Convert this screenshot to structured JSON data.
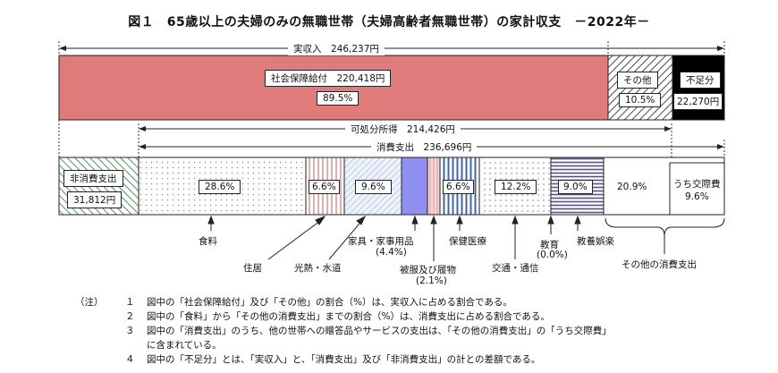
{
  "title": "図１　65歳以上の夫婦のみの無職世帯（夫婦高齢者無職世帯）の家計収支　－2022年－",
  "income": {
    "label": "実収入　246,237円",
    "social_security": {
      "label": "社会保障給付　220,418円",
      "pct": "89.5%"
    },
    "other": {
      "label": "その他",
      "pct": "10.5%"
    },
    "deficit": {
      "label": "不足分",
      "value": "22,270円"
    }
  },
  "disposable": "可処分所得　214,426円",
  "consumption_total": "消費支出　236,696円",
  "non_consumption": {
    "label": "非消費支出",
    "value": "31,812円"
  },
  "expenses": [
    {
      "pct": "28.6%",
      "label": "食料"
    },
    {
      "pct": "6.6%",
      "label": "住居"
    },
    {
      "pct": "",
      "label": "光熱・水道"
    },
    {
      "pct": "9.6%",
      "label": "家具・家事用品",
      "sub": "(4.4%)"
    },
    {
      "pct": "",
      "label": "被服及び履物",
      "sub": "(2.1%)"
    },
    {
      "pct": "6.6%",
      "label": "保健医療"
    },
    {
      "pct": "12.2%",
      "label": "交通・通信"
    },
    {
      "pct": "",
      "label": "教育",
      "sub": "(0.0%)"
    },
    {
      "pct": "9.0%",
      "label": "教養娯楽"
    },
    {
      "pct": "20.9%",
      "label": "その他の消費支出"
    }
  ],
  "kosaihi": {
    "label": "うち交際費",
    "pct": "9.6%"
  },
  "notes": {
    "head": "（注）",
    "items": [
      {
        "num": "１",
        "text": "図中の「社会保障給付」及び「その他」の割合（%）は、実収入に占める割合である。"
      },
      {
        "num": "２",
        "text": "図中の「食料」から「その他の消費支出」までの割合（%）は、消費支出に占める割合である。"
      },
      {
        "num": "３",
        "text": "図中の「消費支出」のうち、他の世帯への贈答品やサービスの支出は、「その他の消費支出」の「うち交際費」"
      },
      {
        "num": "",
        "text": "に含まれている。"
      },
      {
        "num": "４",
        "text": "図中の「不足分」とは、「実収入」と、「消費支出」及び「非消費支出」の計との差額である。"
      }
    ]
  }
}
